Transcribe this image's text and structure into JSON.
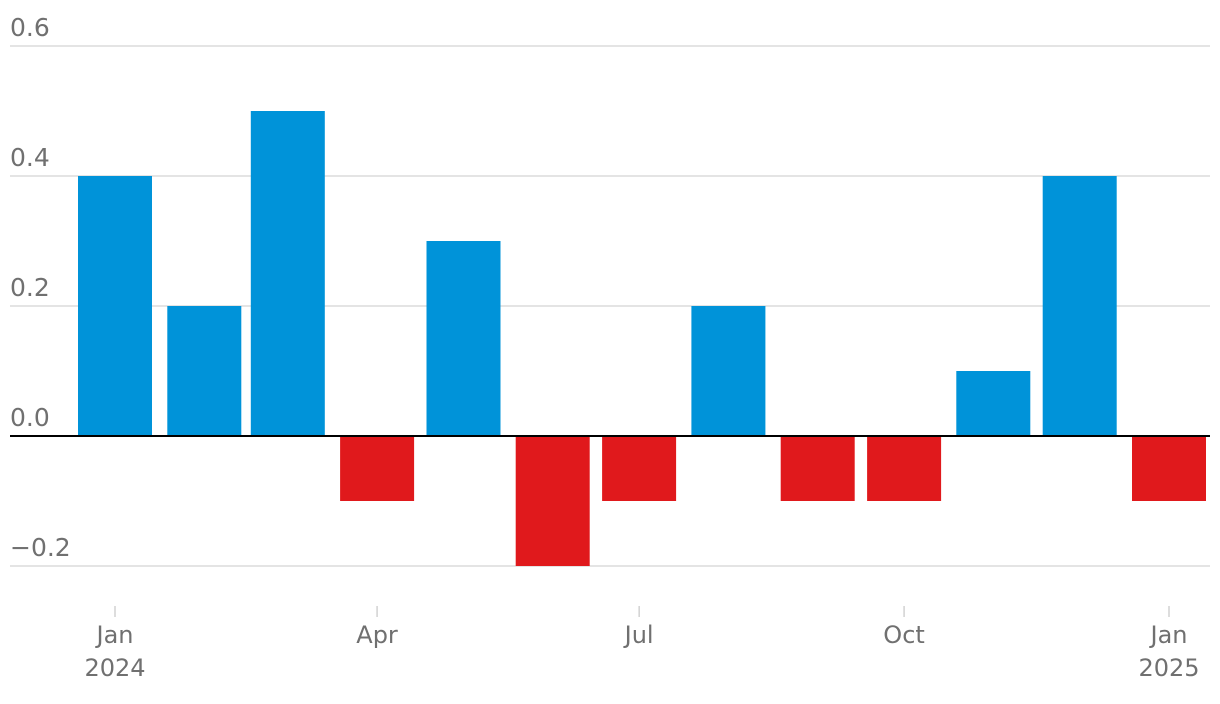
{
  "chart_data": {
    "type": "bar",
    "categories": [
      "2024-01",
      "2024-02",
      "2024-03",
      "2024-04",
      "2024-05",
      "2024-06",
      "2024-07",
      "2024-08",
      "2024-09",
      "2024-10",
      "2024-11",
      "2024-12",
      "2025-01"
    ],
    "values": [
      0.4,
      0.2,
      0.5,
      -0.1,
      0.3,
      -0.2,
      -0.1,
      0.2,
      -0.1,
      -0.1,
      0.1,
      0.4,
      -0.1
    ],
    "ylim": [
      -0.2,
      0.6
    ],
    "yticks": [
      {
        "value": 0.6,
        "label": "0.6"
      },
      {
        "value": 0.4,
        "label": "0.4"
      },
      {
        "value": 0.2,
        "label": "0.2"
      },
      {
        "value": 0.0,
        "label": "0.0"
      },
      {
        "value": -0.2,
        "label": "−0.2"
      }
    ],
    "xticks": [
      {
        "date": "2024-01",
        "label": "Jan",
        "sublabel": "2024"
      },
      {
        "date": "2024-04",
        "label": "Apr",
        "sublabel": ""
      },
      {
        "date": "2024-07",
        "label": "Jul",
        "sublabel": ""
      },
      {
        "date": "2024-10",
        "label": "Oct",
        "sublabel": ""
      },
      {
        "date": "2025-01",
        "label": "Jan",
        "sublabel": "2025"
      }
    ],
    "grid": true,
    "colors": {
      "positive": "#0093d9",
      "negative": "#e0191c"
    }
  }
}
